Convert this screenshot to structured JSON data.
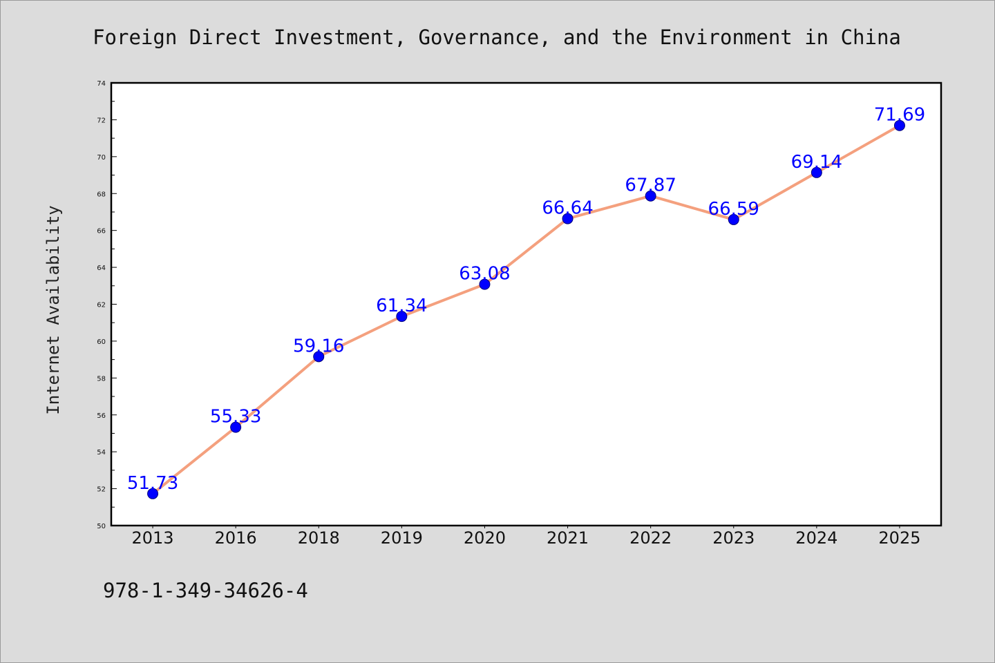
{
  "chart_data": {
    "type": "line",
    "title": "Foreign Direct Investment, Governance, and the Environment in China",
    "xlabel": "",
    "ylabel": "Internet Availability",
    "categories": [
      "2013",
      "2016",
      "2018",
      "2019",
      "2020",
      "2021",
      "2022",
      "2023",
      "2024",
      "2025"
    ],
    "series": [
      {
        "values": [
          51.73,
          55.33,
          59.16,
          61.34,
          63.08,
          66.64,
          67.87,
          66.59,
          69.14,
          71.69
        ],
        "labels": [
          "51.73",
          "55.33",
          "59.16",
          "61.34",
          "63.08",
          "66.64",
          "67.87",
          "66.59",
          "69.14",
          "71.69"
        ]
      }
    ],
    "ylim": [
      50,
      74
    ],
    "yticks": [
      "50",
      "52",
      "54",
      "56",
      "58",
      "60",
      "62",
      "64",
      "66",
      "68",
      "70",
      "72",
      "74"
    ],
    "grid": false,
    "legend": "none",
    "colors": {
      "line": "#f4a07e",
      "marker": "#0000ff",
      "data_label": "#0000ff",
      "background": "#dcdcdc",
      "plot_bg": "#ffffff"
    }
  },
  "footer": {
    "isbn": "978-1-349-34626-4"
  }
}
